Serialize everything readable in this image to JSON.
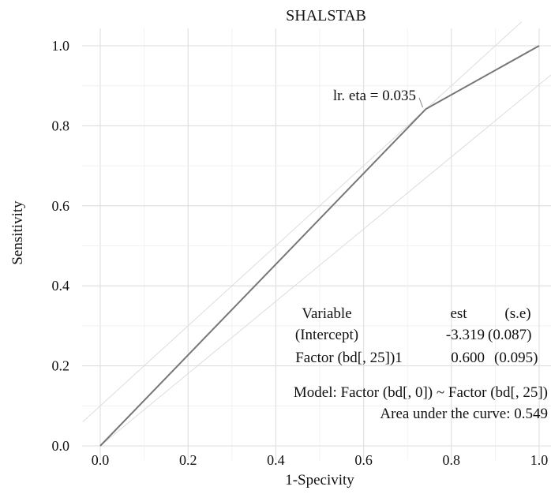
{
  "chart_data": {
    "type": "line",
    "title": "SHALSTAB",
    "xlabel": "1-Specivity",
    "ylabel": "Sensitivity",
    "xlim": [
      0.0,
      1.0
    ],
    "ylim": [
      0.0,
      1.0
    ],
    "grid": true,
    "x_ticks": [
      "0.0",
      "0.2",
      "0.4",
      "0.6",
      "0.8",
      "1.0"
    ],
    "y_ticks": [
      "0.0",
      "0.2",
      "0.4",
      "0.6",
      "0.8",
      "1.0"
    ],
    "series": [
      {
        "x": [
          0.0,
          0.742,
          1.0
        ],
        "y": [
          0.0,
          0.842,
          1.0
        ],
        "color": "#777777"
      }
    ],
    "annotation": {
      "text": "lr. eta = 0.035",
      "point": [
        0.742,
        0.842
      ]
    },
    "coef_table": {
      "headers": [
        "Variable",
        "est",
        "(s.e)"
      ],
      "rows": [
        [
          "(Intercept)",
          "-3.319",
          "(0.087)"
        ],
        [
          "Factor (bd[, 25])1",
          "0.600",
          "(0.095)"
        ]
      ]
    },
    "model_text": "Model: Factor (bd[, 0]) ~ Factor (bd[, 25])",
    "auc_text": "Area under the curve: 0.549"
  }
}
